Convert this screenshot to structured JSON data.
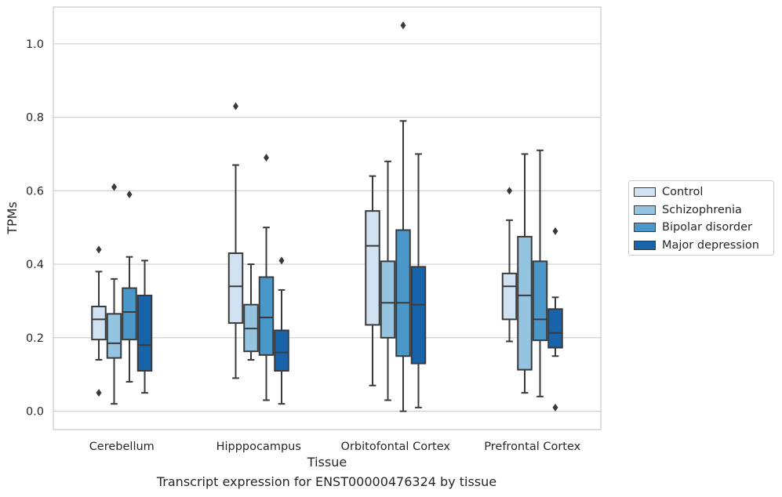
{
  "chart_data": {
    "type": "box",
    "title": "Transcript expression for ENST00000476324 by tissue",
    "xlabel": "Tissue",
    "ylabel": "TPMs",
    "ylim": [
      -0.05,
      1.1
    ],
    "yticks": [
      "0.0",
      "0.2",
      "0.4",
      "0.6",
      "0.8",
      "1.0"
    ],
    "ytick_values": [
      0.0,
      0.2,
      0.4,
      0.6,
      0.8,
      1.0
    ],
    "grid": true,
    "legend_position": "right",
    "categories": [
      "Cerebellum",
      "Hipppocampus",
      "Orbitofontal Cortex",
      "Prefrontal Cortex"
    ],
    "series": [
      {
        "name": "Control",
        "color": "#d0e1f2",
        "boxes": [
          {
            "whisker_low": 0.14,
            "q1": 0.195,
            "median": 0.25,
            "q3": 0.285,
            "whisker_high": 0.38,
            "outliers": [
              0.44,
              0.05
            ]
          },
          {
            "whisker_low": 0.09,
            "q1": 0.24,
            "median": 0.34,
            "q3": 0.43,
            "whisker_high": 0.67,
            "outliers": [
              0.83
            ]
          },
          {
            "whisker_low": 0.07,
            "q1": 0.235,
            "median": 0.45,
            "q3": 0.545,
            "whisker_high": 0.64,
            "outliers": []
          },
          {
            "whisker_low": 0.19,
            "q1": 0.25,
            "median": 0.34,
            "q3": 0.375,
            "whisker_high": 0.52,
            "outliers": [
              0.6
            ]
          }
        ]
      },
      {
        "name": "Schizophrenia",
        "color": "#94c4df",
        "boxes": [
          {
            "whisker_low": 0.02,
            "q1": 0.145,
            "median": 0.185,
            "q3": 0.265,
            "whisker_high": 0.36,
            "outliers": [
              0.61
            ]
          },
          {
            "whisker_low": 0.14,
            "q1": 0.163,
            "median": 0.225,
            "q3": 0.29,
            "whisker_high": 0.4,
            "outliers": []
          },
          {
            "whisker_low": 0.03,
            "q1": 0.2,
            "median": 0.295,
            "q3": 0.408,
            "whisker_high": 0.68,
            "outliers": []
          },
          {
            "whisker_low": 0.05,
            "q1": 0.113,
            "median": 0.315,
            "q3": 0.475,
            "whisker_high": 0.7,
            "outliers": []
          }
        ]
      },
      {
        "name": "Bipolar disorder",
        "color": "#4a98c9",
        "boxes": [
          {
            "whisker_low": 0.08,
            "q1": 0.195,
            "median": 0.27,
            "q3": 0.335,
            "whisker_high": 0.42,
            "outliers": [
              0.59
            ]
          },
          {
            "whisker_low": 0.03,
            "q1": 0.153,
            "median": 0.255,
            "q3": 0.365,
            "whisker_high": 0.5,
            "outliers": [
              0.69
            ]
          },
          {
            "whisker_low": 0.0,
            "q1": 0.15,
            "median": 0.295,
            "q3": 0.493,
            "whisker_high": 0.79,
            "outliers": [
              1.05
            ]
          },
          {
            "whisker_low": 0.04,
            "q1": 0.193,
            "median": 0.25,
            "q3": 0.408,
            "whisker_high": 0.71,
            "outliers": []
          }
        ]
      },
      {
        "name": "Major depression",
        "color": "#1764ab",
        "boxes": [
          {
            "whisker_low": 0.05,
            "q1": 0.11,
            "median": 0.18,
            "q3": 0.315,
            "whisker_high": 0.41,
            "outliers": []
          },
          {
            "whisker_low": 0.02,
            "q1": 0.11,
            "median": 0.16,
            "q3": 0.22,
            "whisker_high": 0.33,
            "outliers": [
              0.41
            ]
          },
          {
            "whisker_low": 0.01,
            "q1": 0.13,
            "median": 0.29,
            "q3": 0.393,
            "whisker_high": 0.7,
            "outliers": []
          },
          {
            "whisker_low": 0.15,
            "q1": 0.173,
            "median": 0.213,
            "q3": 0.278,
            "whisker_high": 0.31,
            "outliers": [
              0.49,
              0.01
            ]
          }
        ]
      }
    ]
  }
}
